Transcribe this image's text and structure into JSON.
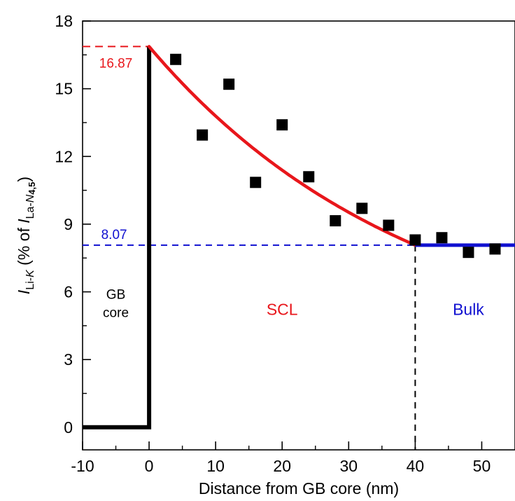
{
  "chart_data": {
    "type": "scatter",
    "x_label": "Distance from GB core (nm)",
    "y_label": {
      "main_italic": "I",
      "main_sub": "Li-",
      "main_sub_italic": "K",
      "middle": " (% of ",
      "ref_italic": "I",
      "ref_sub": "La-",
      "ref_sub_italic": "N",
      "ref_sub_bold": "4,5",
      "close": ")"
    },
    "xlim": [
      -10,
      55
    ],
    "ylim": [
      -1,
      18
    ],
    "x_ticks": [
      -10,
      0,
      10,
      20,
      30,
      40,
      50
    ],
    "y_ticks": [
      0,
      3,
      6,
      9,
      12,
      15,
      18
    ],
    "scatter_points": [
      {
        "x": 4,
        "y": 16.3
      },
      {
        "x": 8,
        "y": 12.95
      },
      {
        "x": 12,
        "y": 15.2
      },
      {
        "x": 16,
        "y": 10.85
      },
      {
        "x": 20,
        "y": 13.4
      },
      {
        "x": 24,
        "y": 11.1
      },
      {
        "x": 28,
        "y": 9.15
      },
      {
        "x": 32,
        "y": 9.7
      },
      {
        "x": 36,
        "y": 8.95
      },
      {
        "x": 40,
        "y": 8.3
      },
      {
        "x": 44,
        "y": 8.4
      },
      {
        "x": 48,
        "y": 7.75
      },
      {
        "x": 52,
        "y": 7.9
      }
    ],
    "gb_core_profile": [
      {
        "x": -10,
        "y": 0
      },
      {
        "x": 0,
        "y": 0
      },
      {
        "x": 0,
        "y": 16.87
      }
    ],
    "scl_fit": {
      "color": "#e8161b",
      "x_start": 0,
      "x_end": 40,
      "y_start": 16.87,
      "y_end": 8.07,
      "decay_length_nm": 40
    },
    "bulk_line": {
      "color": "#1010d0",
      "x_start": 40,
      "x_end": 55,
      "y": 8.07
    },
    "reference_lines": [
      {
        "name": "peak-value",
        "y": 16.87,
        "label": "16.87",
        "color": "#e8161b"
      },
      {
        "name": "bulk-value",
        "y": 8.07,
        "label": "8.07",
        "color": "#1010d0"
      }
    ],
    "boundary_line": {
      "x": 40
    },
    "region_labels": [
      {
        "name": "gb-core",
        "lines": [
          "GB",
          "core"
        ],
        "x": -5,
        "y": 5.5,
        "color": "#000000"
      },
      {
        "name": "scl",
        "lines": [
          "SCL"
        ],
        "x": 20,
        "y": 5.2,
        "color": "#e8161b"
      },
      {
        "name": "bulk",
        "lines": [
          "Bulk"
        ],
        "x": 48,
        "y": 5.2,
        "color": "#1010d0"
      }
    ]
  }
}
